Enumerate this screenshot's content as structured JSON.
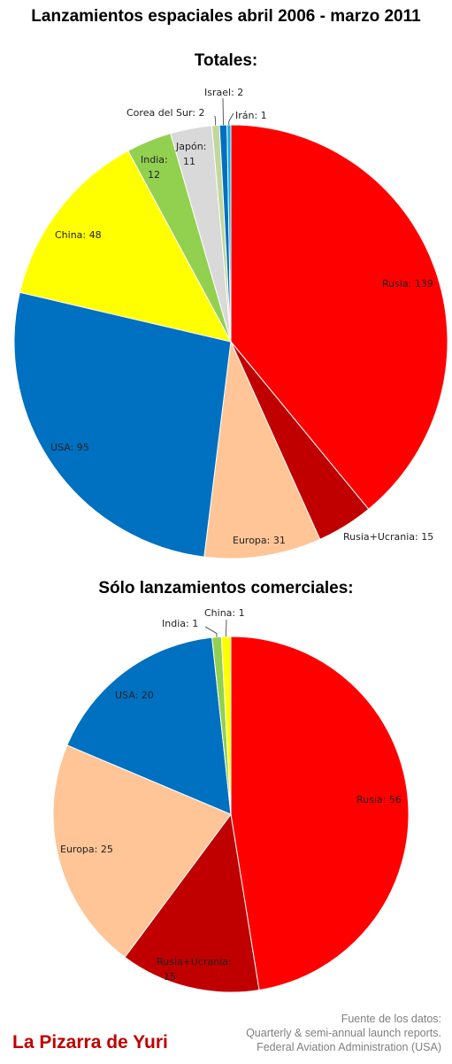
{
  "title": "Lanzamientos espaciales abril 2006 - marzo 2011",
  "chart_data": [
    {
      "type": "pie",
      "title": "Totales:",
      "slices": [
        {
          "label": "Rusia: 139",
          "name": "Rusia",
          "value": 139,
          "color": "#ff0000"
        },
        {
          "label": "Rusia+Ucrania: 15",
          "name": "Rusia+Ucrania",
          "value": 15,
          "color": "#c00000"
        },
        {
          "label": "Europa: 31",
          "name": "Europa",
          "value": 31,
          "color": "#ffc597"
        },
        {
          "label": "USA: 95",
          "name": "USA",
          "value": 95,
          "color": "#0070c0"
        },
        {
          "label": "China: 48",
          "name": "China",
          "value": 48,
          "color": "#ffff00"
        },
        {
          "label": "India: 12",
          "name": "India",
          "value": 12,
          "color": "#92d050"
        },
        {
          "label": "Japón: 11",
          "name": "Japón",
          "value": 11,
          "color": "#d9d9d9"
        },
        {
          "label": "Corea del Sur: 2",
          "name": "Corea del Sur",
          "value": 2,
          "color": "#c4d79b"
        },
        {
          "label": "Israel: 2",
          "name": "Israel",
          "value": 2,
          "color": "#0070c0"
        },
        {
          "label": "Irán: 1",
          "name": "Irán",
          "value": 1,
          "color": "#00b0f0"
        }
      ]
    },
    {
      "type": "pie",
      "title": "Sólo lanzamientos comerciales:",
      "slices": [
        {
          "label": "Rusia: 56",
          "name": "Rusia",
          "value": 56,
          "color": "#ff0000"
        },
        {
          "label": "Rusia+Ucrania: 15",
          "name": "Rusia+Ucrania",
          "value": 15,
          "color": "#c00000"
        },
        {
          "label": "Europa: 25",
          "name": "Europa",
          "value": 25,
          "color": "#ffc597"
        },
        {
          "label": "USA: 20",
          "name": "USA",
          "value": 20,
          "color": "#0070c0"
        },
        {
          "label": "India: 1",
          "name": "India",
          "value": 1,
          "color": "#92d050"
        },
        {
          "label": "China: 1",
          "name": "China",
          "value": 1,
          "color": "#ffff00"
        }
      ]
    }
  ],
  "brand": "La Pizarra de Yuri",
  "source": {
    "line1": "Fuente de los datos:",
    "line2": "Quarterly & semi-annual launch reports.",
    "line3": "Federal Aviation Administration (USA)"
  }
}
